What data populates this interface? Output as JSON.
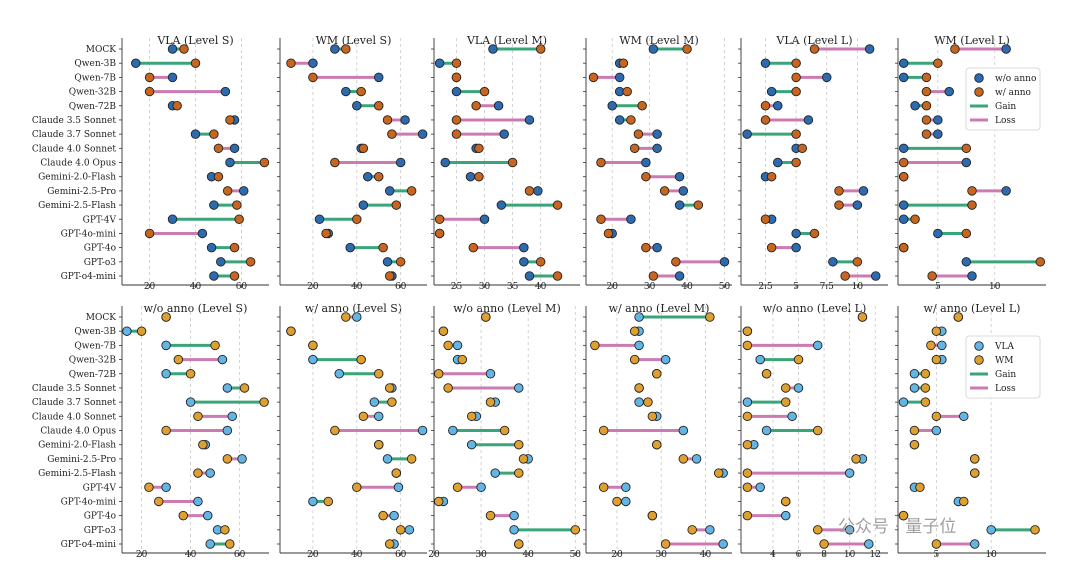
{
  "colors": {
    "blue": "#2d6bb0",
    "orange": "#c8651f",
    "lightblue": "#62b6e6",
    "gold": "#e0a030",
    "gain": "#3aa579",
    "loss": "#cc7bb2",
    "grid": "#c8c8c8"
  },
  "watermark": "公众号 · 量子位",
  "models": [
    "MOCK",
    "Qwen-3B",
    "Qwen-7B",
    "Qwen-32B",
    "Qwen-72B",
    "Claude 3.5 Sonnet",
    "Claude 3.7 Sonnet",
    "Claude 4.0 Sonnet",
    "Claude 4.0 Opus",
    "Gemini-2.0-Flash",
    "Gemini-2.5-Pro",
    "Gemini-2.5-Flash",
    "GPT-4V",
    "GPT-4o-mini",
    "GPT-4o",
    "GPT-o3",
    "GPT-o4-mini"
  ],
  "legend_top": {
    "a": "w/o anno",
    "b": "w/ anno",
    "gain": "Gain",
    "loss": "Loss"
  },
  "legend_bottom": {
    "a": "VLA",
    "b": "WM",
    "gain": "Gain",
    "loss": "Loss"
  },
  "chart_data": [
    {
      "type": "dumbbell",
      "row": "top",
      "title": "VLA (Level S)",
      "xlim": [
        8,
        72
      ],
      "xticks": [
        20,
        40,
        60
      ],
      "a_label": "w/o anno",
      "b_label": "w/ anno",
      "a": [
        30,
        14,
        30,
        53,
        30,
        57,
        40,
        57,
        55,
        47,
        61,
        48,
        30,
        43,
        47,
        51,
        48
      ],
      "b": [
        35,
        40,
        20,
        20,
        32,
        55,
        48,
        50,
        70,
        50,
        54,
        58,
        59,
        20,
        57,
        64,
        57
      ]
    },
    {
      "type": "dumbbell",
      "row": "top",
      "title": "WM (Level S)",
      "xlim": [
        5,
        72
      ],
      "xticks": [
        20,
        40,
        60
      ],
      "a_label": "w/o anno",
      "b_label": "w/ anno",
      "a": [
        30,
        20,
        50,
        35,
        40,
        62,
        70,
        42,
        60,
        45,
        55,
        43,
        23,
        27,
        37,
        54,
        56
      ],
      "b": [
        35,
        10,
        20,
        42,
        50,
        54,
        56,
        43,
        30,
        50,
        65,
        58,
        40,
        26,
        52,
        60,
        55
      ]
    },
    {
      "type": "dumbbell",
      "row": "top",
      "title": "VLA (Level M)",
      "xlim": [
        21,
        47
      ],
      "xticks": [
        25,
        30,
        35,
        40
      ],
      "a_label": "w/o anno",
      "b_label": "w/ anno",
      "a": [
        31.5,
        22,
        25,
        25,
        32.5,
        38,
        33.5,
        28.5,
        23,
        27.5,
        39.5,
        33,
        30,
        22,
        37,
        37,
        38
      ],
      "b": [
        40,
        25,
        25,
        30,
        28.5,
        25,
        25,
        29,
        35,
        29,
        38,
        43,
        22,
        22,
        28,
        40,
        43
      ]
    },
    {
      "type": "dumbbell",
      "row": "top",
      "title": "WM (Level M)",
      "xlim": [
        13,
        52
      ],
      "xticks": [
        20,
        30,
        40,
        50
      ],
      "a_label": "w/o anno",
      "b_label": "w/ anno",
      "a": [
        31,
        22,
        22,
        22,
        20,
        22,
        32,
        32,
        29,
        38,
        39,
        38,
        25,
        20,
        32,
        50,
        38
      ],
      "b": [
        40,
        23,
        15,
        24,
        28,
        25,
        27,
        26,
        17,
        29,
        34,
        43,
        17,
        19,
        29,
        37,
        31
      ]
    },
    {
      "type": "dumbbell",
      "row": "top",
      "title": "VLA (Level L)",
      "xlim": [
        0.5,
        12.5
      ],
      "xticks": [
        2.5,
        5.0,
        7.5,
        10.0
      ],
      "a_label": "w/o anno",
      "b_label": "w/ anno",
      "a": [
        11,
        2.5,
        7.5,
        3,
        3.5,
        6,
        1,
        5,
        3.5,
        2.5,
        10.5,
        10,
        3,
        5,
        5,
        8,
        11.5
      ],
      "b": [
        6.5,
        5,
        5,
        5,
        2.5,
        2.5,
        5,
        5.5,
        5,
        3,
        8.5,
        8.5,
        2.5,
        6.5,
        3,
        10,
        9
      ]
    },
    {
      "type": "dumbbell",
      "row": "top",
      "title": "WM (Level L)",
      "xlim": [
        1.5,
        14.5
      ],
      "xticks": [
        5,
        10
      ],
      "a_label": "w/o anno",
      "b_label": "w/ anno",
      "a": [
        11,
        2,
        2,
        6,
        3,
        5,
        5,
        2,
        7.5,
        2,
        11,
        2,
        2,
        5,
        2,
        7.5,
        8
      ],
      "b": [
        6.5,
        5,
        4,
        4,
        4,
        4,
        4,
        7.5,
        2,
        2,
        8,
        8,
        3,
        7.5,
        2,
        14,
        4.5
      ]
    },
    {
      "type": "dumbbell",
      "row": "bottom",
      "title": "w/o anno (Level S)",
      "xlim": [
        12,
        72
      ],
      "xticks": [
        20,
        40,
        60
      ],
      "a_label": "VLA",
      "b_label": "WM",
      "a": [
        30,
        14,
        30,
        53,
        30,
        55,
        40,
        57,
        55,
        46,
        61,
        48,
        30,
        43,
        47,
        51,
        48
      ],
      "b": [
        30,
        20,
        50,
        35,
        40,
        62,
        70,
        43,
        30,
        45,
        55,
        43,
        23,
        27,
        37,
        54,
        56
      ]
    },
    {
      "type": "dumbbell",
      "row": "bottom",
      "title": "w/ anno (Level S)",
      "xlim": [
        5,
        72
      ],
      "xticks": [
        20,
        40,
        60
      ],
      "a_label": "VLA",
      "b_label": "WM",
      "a": [
        40,
        10,
        20,
        20,
        32,
        56,
        48,
        50,
        70,
        50,
        54,
        58,
        59,
        20,
        57,
        64,
        57
      ],
      "b": [
        35,
        10,
        20,
        42,
        50,
        55,
        56,
        43,
        30,
        50,
        65,
        58,
        40,
        27,
        52,
        60,
        55
      ]
    },
    {
      "type": "dumbbell",
      "row": "bottom",
      "title": "w/o anno (Level M)",
      "xlim": [
        20,
        51
      ],
      "xticks": [
        20,
        30,
        40,
        50
      ],
      "a_label": "VLA",
      "b_label": "WM",
      "a": [
        31,
        22,
        25,
        25,
        32,
        38,
        33,
        29,
        24,
        28,
        40,
        33,
        30,
        22,
        37,
        37,
        38
      ],
      "b": [
        31,
        22,
        23,
        26,
        21,
        23,
        32,
        28,
        35,
        38,
        39,
        38,
        25,
        21,
        32,
        50,
        38
      ]
    },
    {
      "type": "dumbbell",
      "row": "bottom",
      "title": "w/ anno (Level M)",
      "xlim": [
        13,
        46
      ],
      "xticks": [
        20,
        30,
        40
      ],
      "a_label": "VLA",
      "b_label": "WM",
      "a": [
        25,
        25,
        25,
        31,
        29,
        25,
        25,
        29,
        35,
        29,
        38,
        44,
        22,
        22,
        28,
        41,
        44
      ],
      "b": [
        41,
        24,
        15,
        24,
        29,
        25,
        27,
        28,
        17,
        29,
        35,
        43,
        17,
        20,
        28,
        37,
        31
      ]
    },
    {
      "type": "dumbbell",
      "row": "bottom",
      "title": "w/o anno (Level L)",
      "xlim": [
        1.5,
        13
      ],
      "xticks": [
        4,
        6,
        8,
        10,
        12
      ],
      "a_label": "VLA",
      "b_label": "WM",
      "a": [
        11,
        2,
        7.5,
        3,
        3.5,
        6,
        2,
        5.5,
        3.5,
        2.5,
        11,
        10,
        3,
        5,
        5,
        10,
        11.5
      ],
      "b": [
        11,
        2,
        2,
        6,
        3.5,
        5,
        5,
        2,
        7.5,
        2,
        10.5,
        2,
        2,
        5,
        2,
        7.5,
        8
      ]
    },
    {
      "type": "dumbbell",
      "row": "bottom",
      "title": "w/ anno (Level L)",
      "xlim": [
        1.5,
        15
      ],
      "xticks": [
        5,
        10
      ],
      "a_label": "VLA",
      "b_label": "WM",
      "a": [
        7,
        5.5,
        5.5,
        5.5,
        3,
        3,
        2,
        7.5,
        5,
        3,
        8.5,
        8.5,
        3,
        7,
        2,
        10,
        8.5
      ],
      "b": [
        7,
        5,
        4.5,
        5,
        4,
        4,
        4,
        5,
        3,
        3,
        8.5,
        8.5,
        3.5,
        7.5,
        2,
        14,
        5
      ]
    }
  ]
}
